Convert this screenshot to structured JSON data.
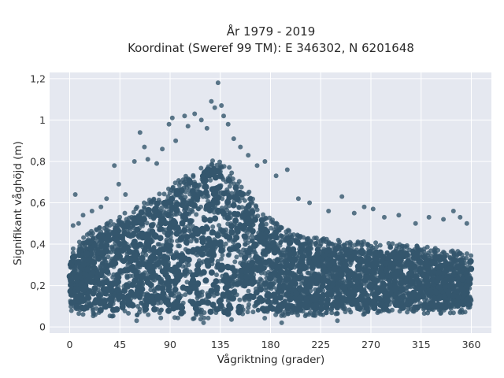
{
  "chart_data": {
    "type": "scatter",
    "title": "År 1979 - 2019",
    "subtitle": "Koordinat (Sweref 99 TM): E 346302, N 6201648",
    "xlabel": "Vågriktning (grader)",
    "ylabel": "Signifikant våghöjd (m)",
    "xlim": [
      -18,
      378
    ],
    "ylim": [
      -0.03,
      1.23
    ],
    "x_ticks": [
      0,
      45,
      90,
      135,
      180,
      225,
      270,
      315,
      360
    ],
    "x_tick_labels": [
      "0",
      "45",
      "90",
      "135",
      "180",
      "225",
      "270",
      "315",
      "360"
    ],
    "y_ticks": [
      0,
      0.2,
      0.4,
      0.6,
      0.8,
      1.0,
      1.2
    ],
    "y_tick_labels": [
      "0",
      "0,2",
      "0,4",
      "0,6",
      "0,8",
      "1",
      "1,2"
    ],
    "grid": true,
    "marker_color": "#34566d",
    "plot_background": "#e5e8f0",
    "envelope": {
      "description_x": [
        0,
        10,
        20,
        30,
        45,
        60,
        75,
        90,
        105,
        120,
        130,
        135,
        145,
        160,
        175,
        190,
        210,
        240,
        270,
        300,
        330,
        360
      ],
      "y_low": [
        0.07,
        0.06,
        0.05,
        0.05,
        0.05,
        0.05,
        0.04,
        0.04,
        0.03,
        0.03,
        0.03,
        0.03,
        0.03,
        0.04,
        0.04,
        0.05,
        0.05,
        0.06,
        0.06,
        0.06,
        0.06,
        0.07
      ],
      "y_core_high": [
        0.38,
        0.42,
        0.47,
        0.5,
        0.54,
        0.58,
        0.63,
        0.68,
        0.74,
        0.79,
        0.82,
        0.82,
        0.76,
        0.66,
        0.55,
        0.48,
        0.44,
        0.42,
        0.41,
        0.4,
        0.38,
        0.36
      ]
    },
    "outliers": [
      {
        "x": 3,
        "y": 0.49
      },
      {
        "x": 5,
        "y": 0.64
      },
      {
        "x": 8,
        "y": 0.5
      },
      {
        "x": 12,
        "y": 0.54
      },
      {
        "x": 20,
        "y": 0.56
      },
      {
        "x": 28,
        "y": 0.58
      },
      {
        "x": 33,
        "y": 0.62
      },
      {
        "x": 40,
        "y": 0.78
      },
      {
        "x": 44,
        "y": 0.69
      },
      {
        "x": 50,
        "y": 0.64
      },
      {
        "x": 58,
        "y": 0.8
      },
      {
        "x": 63,
        "y": 0.94
      },
      {
        "x": 67,
        "y": 0.87
      },
      {
        "x": 70,
        "y": 0.81
      },
      {
        "x": 78,
        "y": 0.79
      },
      {
        "x": 83,
        "y": 0.86
      },
      {
        "x": 89,
        "y": 0.98
      },
      {
        "x": 92,
        "y": 1.01
      },
      {
        "x": 95,
        "y": 0.9
      },
      {
        "x": 103,
        "y": 1.02
      },
      {
        "x": 106,
        "y": 0.97
      },
      {
        "x": 112,
        "y": 1.03
      },
      {
        "x": 118,
        "y": 1.0
      },
      {
        "x": 123,
        "y": 0.96
      },
      {
        "x": 127,
        "y": 1.09
      },
      {
        "x": 130,
        "y": 1.06
      },
      {
        "x": 133,
        "y": 1.18
      },
      {
        "x": 136,
        "y": 1.07
      },
      {
        "x": 138,
        "y": 1.02
      },
      {
        "x": 142,
        "y": 0.98
      },
      {
        "x": 147,
        "y": 0.91
      },
      {
        "x": 153,
        "y": 0.87
      },
      {
        "x": 160,
        "y": 0.83
      },
      {
        "x": 168,
        "y": 0.78
      },
      {
        "x": 175,
        "y": 0.8
      },
      {
        "x": 185,
        "y": 0.73
      },
      {
        "x": 195,
        "y": 0.76
      },
      {
        "x": 205,
        "y": 0.62
      },
      {
        "x": 215,
        "y": 0.6
      },
      {
        "x": 232,
        "y": 0.56
      },
      {
        "x": 244,
        "y": 0.63
      },
      {
        "x": 255,
        "y": 0.55
      },
      {
        "x": 264,
        "y": 0.58
      },
      {
        "x": 272,
        "y": 0.57
      },
      {
        "x": 282,
        "y": 0.53
      },
      {
        "x": 295,
        "y": 0.54
      },
      {
        "x": 310,
        "y": 0.5
      },
      {
        "x": 322,
        "y": 0.53
      },
      {
        "x": 335,
        "y": 0.52
      },
      {
        "x": 344,
        "y": 0.56
      },
      {
        "x": 350,
        "y": 0.53
      },
      {
        "x": 356,
        "y": 0.5
      },
      {
        "x": 240,
        "y": 0.03
      },
      {
        "x": 190,
        "y": 0.02
      },
      {
        "x": 120,
        "y": 0.02
      },
      {
        "x": 60,
        "y": 0.03
      }
    ]
  }
}
